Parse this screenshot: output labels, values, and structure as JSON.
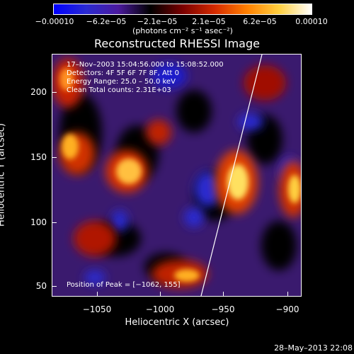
{
  "colorbar": {
    "ticks": [
      "−0.00010",
      "−6.2e−05",
      "−2.1e−05",
      "2.1e−05",
      "6.2e−05",
      "0.00010"
    ],
    "units": "(photons cm⁻² s⁻¹ asec⁻²)",
    "colors": [
      "#0000ff",
      "#2a2ad0",
      "#4b1a9e",
      "#000000",
      "#7a0000",
      "#d52a00",
      "#ff8000",
      "#ffd040",
      "#ffffff"
    ]
  },
  "title": "Reconstructed RHESSI Image",
  "info": {
    "line1": "17–Nov–2003 15:04:56.000 to 15:08:52.000",
    "line2": "Detectors: 4F 5F 6F 7F 8F, Att 0",
    "line3": "Energy Range: 25.0 – 50.0 keV",
    "line4": "Clean    Total counts: 2.31E+03",
    "peak": "Position of Peak = [−1062, 155]"
  },
  "axes": {
    "x_label": "Heliocentric X (arcsec)",
    "y_label": "Heliocentric Y (arcsec)",
    "x_ticks": [
      "−1050",
      "−1000",
      "−950",
      "−900"
    ],
    "y_ticks": [
      "200",
      "150",
      "100",
      "50"
    ],
    "x_range": [
      -1085,
      -885
    ],
    "y_range": [
      37,
      232
    ]
  },
  "timestamp": "28–May–2013 22:08"
}
